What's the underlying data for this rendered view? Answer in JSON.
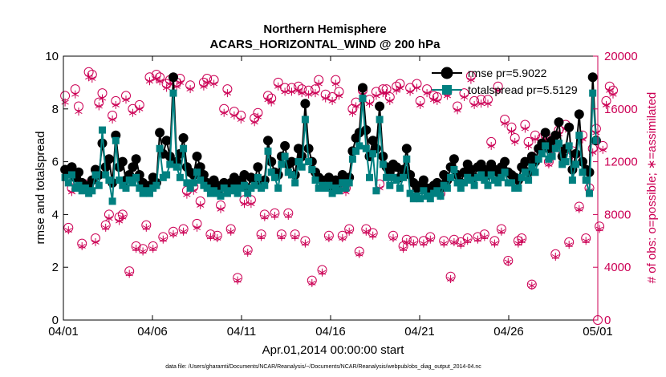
{
  "colors": {
    "rmse": "#000000",
    "totalspread": "#008080",
    "obs": "#cc0055",
    "axis": "#000000"
  },
  "chart_data": {
    "type": "line",
    "title_line1": "Northern Hemisphere",
    "title_line2": "ACARS_HORIZONTAL_WIND @ 200 hPa",
    "xlabel": "Apr.01,2014 00:00:00 start",
    "ylabel_left": "rmse and totalspread",
    "ylabel_right": "# of obs: o=possible; ∗=assimilated",
    "footnote": "data file: /Users/gharamti/Documents/NCAR/Reanalysis/~/Documents/NCAR/Reanalysis/webpub/obs_diag_output_2014-04.nc",
    "xlim": [
      0,
      30
    ],
    "ylim_left": [
      0,
      10
    ],
    "ylim_right": [
      0,
      20000
    ],
    "x_ticks": [
      0,
      5,
      10,
      15,
      20,
      25,
      30
    ],
    "x_tick_labels": [
      "04/01",
      "04/06",
      "04/11",
      "04/16",
      "04/21",
      "04/26",
      "05/01"
    ],
    "y_left_ticks": [
      0,
      2,
      4,
      6,
      8,
      10
    ],
    "y_left_tick_labels": [
      "0",
      "2",
      "4",
      "6",
      "8",
      "10"
    ],
    "y_right_ticks": [
      0,
      4000,
      8000,
      12000,
      16000,
      20000
    ],
    "y_right_tick_labels": [
      "0",
      "4000",
      "8000",
      "12000",
      "16000",
      "20000"
    ],
    "legend": {
      "placement": "top-right",
      "rmse": "rmse pr=5.9022",
      "totalspread": "totalspread pr=5.5129"
    },
    "series": [
      {
        "name": "rmse",
        "values": [
          5.7,
          5.6,
          5.8,
          5.4,
          5.6,
          5.2,
          5.1,
          5.0,
          5.3,
          5.7,
          5.5,
          6.7,
          5.8,
          6.1,
          5.2,
          7.0,
          5.8,
          6.0,
          5.3,
          5.5,
          5.8,
          6.1,
          5.5,
          5.2,
          5.0,
          5.1,
          5.4,
          5.2,
          7.1,
          6.3,
          6.8,
          6.2,
          9.2,
          6.0,
          6.3,
          6.9,
          5.8,
          5.6,
          5.5,
          6.2,
          5.8,
          5.5,
          5.2,
          5.0,
          5.3,
          5.1,
          5.0,
          5.2,
          5.1,
          5.2,
          5.4,
          5.1,
          5.3,
          5.5,
          5.0,
          5.4,
          5.3,
          5.8,
          5.2,
          5.3,
          6.8,
          6.0,
          5.6,
          5.5,
          6.2,
          6.6,
          5.9,
          6.0,
          5.5,
          6.5,
          6.2,
          8.2,
          6.5,
          6.0,
          5.6,
          5.4,
          5.3,
          5.2,
          5.4,
          5.0,
          5.3,
          5.2,
          5.5,
          5.3,
          5.4,
          6.4,
          6.9,
          7.1,
          8.8,
          7.2,
          6.2,
          6.8,
          6.5,
          8.1,
          6.2,
          5.8,
          5.6,
          5.9,
          5.8,
          5.4,
          5.7,
          6.5,
          5.5,
          5.2,
          5.0,
          5.1,
          5.3,
          5.0,
          4.9,
          5.1,
          5.2,
          5.0,
          5.5,
          5.3,
          5.8,
          6.1,
          5.5,
          5.2,
          5.6,
          5.9,
          5.7,
          5.4,
          5.8,
          5.9,
          5.7,
          5.5,
          5.9,
          5.7,
          5.6,
          5.8,
          6.0,
          5.6,
          5.5,
          5.4,
          5.3,
          5.8,
          6.0,
          5.6,
          6.2,
          6.0,
          6.5,
          6.7,
          7.1,
          6.5,
          6.8,
          7.0,
          7.5,
          6.2,
          6.5,
          7.3,
          5.7,
          6.3,
          7.8,
          6.0,
          5.7,
          5.6,
          9.2,
          6.8
        ],
        "marker": "circle"
      },
      {
        "name": "totalspread",
        "values": [
          5.4,
          5.2,
          5.5,
          5.0,
          5.1,
          4.9,
          5.0,
          4.8,
          4.9,
          5.5,
          5.1,
          7.2,
          5.5,
          5.3,
          4.5,
          6.8,
          5.3,
          5.1,
          5.0,
          5.3,
          5.2,
          5.4,
          5.0,
          4.8,
          4.9,
          4.8,
          5.0,
          5.1,
          6.5,
          5.4,
          5.5,
          5.9,
          8.6,
          5.8,
          5.4,
          6.5,
          5.2,
          5.0,
          5.2,
          5.6,
          5.3,
          5.1,
          5.0,
          4.8,
          4.9,
          4.8,
          4.7,
          5.0,
          4.8,
          4.9,
          5.0,
          4.8,
          5.0,
          5.1,
          4.8,
          5.0,
          5.1,
          5.4,
          5.0,
          5.1,
          6.4,
          5.6,
          5.4,
          5.0,
          5.9,
          6.2,
          5.6,
          5.5,
          5.2,
          6.0,
          5.8,
          7.6,
          6.0,
          5.7,
          5.3,
          5.0,
          5.1,
          5.0,
          5.1,
          4.8,
          5.0,
          4.9,
          5.2,
          5.0,
          5.2,
          6.1,
          6.4,
          6.6,
          8.4,
          6.5,
          5.4,
          6.3,
          4.9,
          7.6,
          5.9,
          5.4,
          5.1,
          5.4,
          5.3,
          5.0,
          5.4,
          6.1,
          4.8,
          4.6,
          4.7,
          4.6,
          4.9,
          4.7,
          4.6,
          4.8,
          4.9,
          4.7,
          5.1,
          5.0,
          5.4,
          5.7,
          5.2,
          5.0,
          5.2,
          5.4,
          5.3,
          5.1,
          5.4,
          5.5,
          5.3,
          5.1,
          5.5,
          5.3,
          5.2,
          5.4,
          5.6,
          5.2,
          5.2,
          5.0,
          5.0,
          5.4,
          5.6,
          5.3,
          5.8,
          5.6,
          6.1,
          6.3,
          6.6,
          6.1,
          6.2,
          6.5,
          6.7,
          5.9,
          6.0,
          6.6,
          5.3,
          5.9,
          7.0,
          5.6,
          5.3,
          4.8,
          8.6,
          6.8
        ],
        "marker": "square"
      },
      {
        "name": "obs_possible",
        "values": [
          17000,
          7000,
          10000,
          17500,
          16200,
          5800,
          10300,
          18800,
          18600,
          6200,
          16500,
          17200,
          7200,
          8000,
          15500,
          16600,
          7800,
          8000,
          17000,
          3700,
          16000,
          5600,
          16300,
          5400,
          7200,
          18400,
          5600,
          18600,
          18400,
          6300,
          17900,
          18200,
          6700,
          18000,
          18300,
          6900,
          9800,
          17800,
          10100,
          7300,
          9000,
          18000,
          18300,
          6500,
          18200,
          6400,
          8700,
          16000,
          17500,
          6900,
          15800,
          3200,
          15500,
          9100,
          5300,
          9100,
          15300,
          15700,
          6500,
          8000,
          17000,
          16800,
          8100,
          18000,
          6500,
          17600,
          8100,
          17600,
          6500,
          17700,
          17500,
          6000,
          17400,
          3000,
          17500,
          18200,
          3800,
          17100,
          6400,
          16900,
          18200,
          17300,
          6400,
          10000,
          6900,
          16000,
          16500,
          5200,
          17400,
          6900,
          16700,
          6600,
          17300,
          10300,
          17500,
          17500,
          16900,
          6400,
          17700,
          17900,
          5600,
          6100,
          17600,
          6000,
          17900,
          16600,
          6000,
          17500,
          6300,
          17000,
          16900,
          9600,
          6000,
          17300,
          3300,
          6100,
          16200,
          5900,
          17200,
          6200,
          18500,
          16600,
          6300,
          16700,
          6500,
          16700,
          13500,
          6000,
          17700,
          6900,
          15200,
          4500,
          14600,
          13800,
          6000,
          6200,
          14800,
          13500,
          2700,
          14000,
          12600,
          13800,
          14000,
          12000,
          13000,
          5000,
          14400,
          12900,
          14800,
          5900,
          12800,
          12200,
          8600,
          14000,
          6200,
          10000,
          13000,
          14500,
          7100,
          13200,
          16600,
          17700,
          17400
        ],
        "marker": "open-circle"
      },
      {
        "name": "obs_assimilated",
        "values": [
          16500,
          6800,
          9700,
          17100,
          15800,
          5600,
          10000,
          18400,
          18300,
          5900,
          16200,
          16800,
          7000,
          7700,
          15200,
          16300,
          7500,
          7800,
          16700,
          3500,
          15700,
          5400,
          16000,
          5200,
          7000,
          18100,
          5400,
          18300,
          18100,
          6100,
          17600,
          17900,
          6500,
          17700,
          18000,
          6700,
          9500,
          17500,
          9800,
          7000,
          8700,
          17700,
          18000,
          6300,
          17900,
          6200,
          8400,
          15700,
          17200,
          6700,
          15500,
          3000,
          15200,
          8800,
          5100,
          8800,
          15000,
          15400,
          6300,
          7800,
          16700,
          16500,
          7900,
          17700,
          6300,
          17300,
          7900,
          17300,
          6300,
          17400,
          17200,
          5800,
          17100,
          2800,
          17200,
          17900,
          3600,
          16800,
          6200,
          16600,
          17900,
          17000,
          6200,
          9700,
          6700,
          15700,
          16200,
          5000,
          17100,
          6700,
          16400,
          6400,
          17000,
          10000,
          17200,
          17200,
          16600,
          6200,
          17400,
          17600,
          5400,
          5900,
          17300,
          5800,
          17600,
          16300,
          5800,
          17200,
          6100,
          16700,
          16600,
          9400,
          5800,
          17000,
          3100,
          5900,
          15900,
          5700,
          16900,
          6000,
          18200,
          16300,
          6100,
          16400,
          6300,
          16400,
          13200,
          5800,
          17400,
          6700,
          14900,
          4400,
          14300,
          13500,
          5800,
          6000,
          14500,
          13200,
          2600,
          13700,
          12300,
          13500,
          13700,
          11800,
          12700,
          4800,
          14100,
          12600,
          14500,
          5700,
          12500,
          11900,
          8400,
          13700,
          6000,
          9800,
          12700,
          14200,
          6900,
          12900,
          16300,
          17400,
          17100
        ],
        "marker": "asterisk"
      }
    ]
  }
}
